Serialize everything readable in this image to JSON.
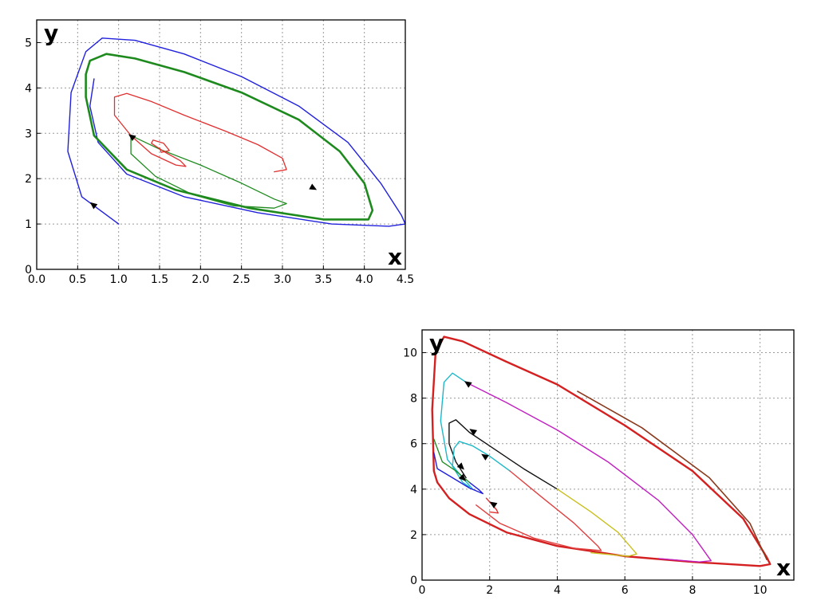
{
  "chart_data": [
    {
      "type": "line",
      "title": "",
      "xlabel": "x",
      "ylabel": "y",
      "xlim": [
        0.0,
        4.5
      ],
      "ylim": [
        0,
        5.5
      ],
      "grid": true,
      "xticks": [
        "0.0",
        "0.5",
        "1.0",
        "1.5",
        "2.0",
        "2.5",
        "3.0",
        "3.5",
        "4.0",
        "4.5"
      ],
      "xtick_values": [
        0.0,
        0.5,
        1.0,
        1.5,
        2.0,
        2.5,
        3.0,
        3.5,
        4.0,
        4.5
      ],
      "yticks": [
        "0",
        "1",
        "2",
        "3",
        "4",
        "5"
      ],
      "ytick_values": [
        0,
        1,
        2,
        3,
        4,
        5
      ],
      "series": [
        {
          "color": "#2020dd",
          "width": 1.4,
          "points": [
            [
              1.0,
              1.0
            ],
            [
              0.55,
              1.6
            ],
            [
              0.38,
              2.6
            ],
            [
              0.42,
              3.9
            ],
            [
              0.6,
              4.8
            ],
            [
              0.8,
              5.1
            ],
            [
              1.2,
              5.05
            ],
            [
              1.8,
              4.75
            ],
            [
              2.5,
              4.25
            ],
            [
              3.2,
              3.6
            ],
            [
              3.8,
              2.8
            ],
            [
              4.2,
              1.9
            ],
            [
              4.45,
              1.2
            ],
            [
              4.5,
              1.0
            ],
            [
              4.3,
              0.95
            ],
            [
              3.6,
              1.0
            ],
            [
              2.7,
              1.25
            ],
            [
              1.8,
              1.6
            ],
            [
              1.1,
              2.1
            ],
            [
              0.75,
              2.8
            ],
            [
              0.65,
              3.6
            ],
            [
              0.7,
              4.2
            ]
          ]
        },
        {
          "color": "#1e8a1e",
          "width": 2.6,
          "points": [
            [
              0.6,
              4.3
            ],
            [
              0.65,
              4.6
            ],
            [
              0.85,
              4.75
            ],
            [
              1.2,
              4.65
            ],
            [
              1.8,
              4.35
            ],
            [
              2.5,
              3.9
            ],
            [
              3.2,
              3.3
            ],
            [
              3.7,
              2.6
            ],
            [
              4.0,
              1.9
            ],
            [
              4.1,
              1.3
            ],
            [
              4.05,
              1.1
            ],
            [
              3.5,
              1.1
            ],
            [
              2.6,
              1.35
            ],
            [
              1.7,
              1.75
            ],
            [
              1.1,
              2.2
            ],
            [
              0.7,
              2.95
            ],
            [
              0.6,
              3.8
            ],
            [
              0.6,
              4.3
            ]
          ]
        },
        {
          "color": "#1e8a1e",
          "width": 1.3,
          "points": [
            [
              1.15,
              2.95
            ],
            [
              1.5,
              2.65
            ],
            [
              2.0,
              2.3
            ],
            [
              2.5,
              1.9
            ],
            [
              2.9,
              1.55
            ],
            [
              3.05,
              1.45
            ],
            [
              2.9,
              1.35
            ],
            [
              2.4,
              1.4
            ],
            [
              1.9,
              1.65
            ],
            [
              1.45,
              2.05
            ],
            [
              1.15,
              2.55
            ],
            [
              1.15,
              2.95
            ]
          ]
        },
        {
          "color": "#e03030",
          "width": 1.3,
          "points": [
            [
              1.15,
              2.95
            ],
            [
              0.95,
              3.4
            ],
            [
              0.95,
              3.8
            ],
            [
              1.1,
              3.88
            ],
            [
              1.4,
              3.7
            ],
            [
              1.8,
              3.4
            ],
            [
              2.3,
              3.05
            ],
            [
              2.7,
              2.75
            ],
            [
              3.0,
              2.45
            ],
            [
              3.05,
              2.2
            ],
            [
              2.9,
              2.15
            ]
          ]
        },
        {
          "color": "#e03030",
          "width": 1.3,
          "points": [
            [
              1.15,
              2.95
            ],
            [
              1.4,
              2.55
            ],
            [
              1.7,
              2.3
            ],
            [
              1.82,
              2.27
            ],
            [
              1.75,
              2.4
            ],
            [
              1.55,
              2.6
            ],
            [
              1.4,
              2.78
            ],
            [
              1.42,
              2.85
            ],
            [
              1.55,
              2.78
            ],
            [
              1.62,
              2.62
            ],
            [
              1.52,
              2.58
            ],
            [
              1.5,
              2.68
            ]
          ]
        }
      ],
      "arrows": [
        {
          "from": [
            0.72,
            1.38
          ],
          "to": [
            0.65,
            1.48
          ]
        },
        {
          "from": [
            1.18,
            2.9
          ],
          "to": [
            1.12,
            2.98
          ]
        },
        {
          "from": [
            3.35,
            1.82
          ],
          "to": [
            3.42,
            1.75
          ]
        }
      ]
    },
    {
      "type": "line",
      "title": "",
      "xlabel": "x",
      "ylabel": "y",
      "xlim": [
        0,
        11
      ],
      "ylim": [
        0,
        11
      ],
      "grid": true,
      "xticks": [
        "0",
        "2",
        "4",
        "6",
        "8",
        "10"
      ],
      "xtick_values": [
        0,
        2,
        4,
        6,
        8,
        10
      ],
      "yticks": [
        "0",
        "2",
        "4",
        "6",
        "8",
        "10"
      ],
      "ytick_values": [
        0,
        2,
        4,
        6,
        8,
        10
      ],
      "series": [
        {
          "color": "#d42020",
          "width": 2.4,
          "points": [
            [
              0.35,
              4.8
            ],
            [
              0.3,
              7.5
            ],
            [
              0.4,
              10.0
            ],
            [
              0.65,
              10.7
            ],
            [
              1.2,
              10.5
            ],
            [
              2.5,
              9.6
            ],
            [
              4.0,
              8.6
            ],
            [
              6.0,
              6.8
            ],
            [
              8.0,
              4.8
            ],
            [
              9.5,
              2.7
            ],
            [
              10.2,
              1.0
            ],
            [
              10.3,
              0.7
            ],
            [
              10.0,
              0.62
            ],
            [
              8.0,
              0.8
            ],
            [
              6.0,
              1.05
            ],
            [
              4.0,
              1.5
            ],
            [
              2.5,
              2.1
            ],
            [
              1.4,
              2.9
            ],
            [
              0.8,
              3.6
            ],
            [
              0.45,
              4.3
            ],
            [
              0.35,
              4.8
            ]
          ]
        },
        {
          "color": "#8a3a1e",
          "width": 1.6,
          "points": [
            [
              4.6,
              8.3
            ],
            [
              6.5,
              6.7
            ],
            [
              8.5,
              4.5
            ],
            [
              9.7,
              2.5
            ],
            [
              10.2,
              0.9
            ]
          ]
        },
        {
          "color": "#c020c0",
          "width": 1.4,
          "points": [
            [
              1.3,
              8.7
            ],
            [
              2.5,
              7.8
            ],
            [
              4.0,
              6.6
            ],
            [
              5.5,
              5.2
            ],
            [
              7.0,
              3.5
            ],
            [
              8.0,
              2.0
            ],
            [
              8.55,
              0.85
            ],
            [
              8.2,
              0.8
            ],
            [
              7.0,
              0.95
            ]
          ]
        },
        {
          "color": "#20b8c8",
          "width": 1.4,
          "points": [
            [
              1.3,
              8.7
            ],
            [
              0.9,
              9.1
            ],
            [
              0.65,
              8.7
            ],
            [
              0.55,
              7.0
            ],
            [
              0.75,
              5.3
            ],
            [
              1.2,
              4.5
            ],
            [
              1.5,
              4.0
            ]
          ]
        },
        {
          "color": "#111111",
          "width": 1.4,
          "points": [
            [
              4.0,
              4.0
            ],
            [
              3.0,
              4.9
            ],
            [
              2.0,
              5.9
            ],
            [
              1.4,
              6.5
            ],
            [
              1.0,
              7.05
            ],
            [
              0.8,
              6.9
            ],
            [
              0.8,
              6.0
            ],
            [
              1.0,
              5.2
            ],
            [
              1.3,
              4.5
            ]
          ]
        },
        {
          "color": "#c8c020",
          "width": 1.4,
          "points": [
            [
              4.0,
              4.0
            ],
            [
              5.0,
              3.0
            ],
            [
              5.8,
              2.1
            ],
            [
              6.35,
              1.15
            ],
            [
              6.1,
              1.05
            ],
            [
              5.0,
              1.2
            ]
          ]
        },
        {
          "color": "#20b8c8",
          "width": 1.4,
          "points": [
            [
              2.6,
              4.8
            ],
            [
              2.0,
              5.45
            ],
            [
              1.5,
              5.9
            ],
            [
              1.1,
              6.1
            ],
            [
              0.95,
              5.8
            ],
            [
              0.9,
              5.0
            ],
            [
              1.2,
              4.3
            ],
            [
              1.4,
              4.1
            ]
          ]
        },
        {
          "color": "#e04040",
          "width": 1.4,
          "points": [
            [
              2.6,
              4.8
            ],
            [
              3.5,
              3.7
            ],
            [
              4.5,
              2.5
            ],
            [
              5.2,
              1.5
            ],
            [
              5.3,
              1.3
            ],
            [
              4.5,
              1.4
            ],
            [
              3.3,
              1.85
            ],
            [
              2.3,
              2.5
            ],
            [
              1.6,
              3.3
            ]
          ]
        },
        {
          "color": "#2020dd",
          "width": 1.4,
          "points": [
            [
              0.35,
              5.6
            ],
            [
              0.45,
              4.9
            ],
            [
              0.9,
              4.5
            ],
            [
              1.4,
              4.05
            ],
            [
              1.8,
              3.8
            ],
            [
              1.7,
              3.95
            ],
            [
              1.4,
              4.3
            ]
          ]
        },
        {
          "color": "#1e8a1e",
          "width": 1.3,
          "points": [
            [
              0.35,
              6.2
            ],
            [
              0.6,
              5.2
            ],
            [
              1.0,
              4.8
            ],
            [
              1.4,
              4.3
            ]
          ]
        },
        {
          "color": "#e03030",
          "width": 1.4,
          "points": [
            [
              1.9,
              3.6
            ],
            [
              2.2,
              3.1
            ],
            [
              2.25,
              2.95
            ],
            [
              2.0,
              3.0
            ]
          ]
        }
      ],
      "arrows": [
        {
          "from": [
            1.4,
            8.6
          ],
          "to": [
            1.25,
            8.75
          ]
        },
        {
          "from": [
            1.55,
            6.5
          ],
          "to": [
            1.4,
            6.65
          ]
        },
        {
          "from": [
            1.9,
            5.4
          ],
          "to": [
            1.75,
            5.55
          ]
        },
        {
          "from": [
            1.2,
            4.5
          ],
          "to": [
            1.3,
            4.35
          ]
        },
        {
          "from": [
            1.15,
            5.0
          ],
          "to": [
            1.25,
            4.85
          ]
        },
        {
          "from": [
            2.1,
            3.35
          ],
          "to": [
            2.0,
            3.45
          ]
        }
      ]
    }
  ]
}
